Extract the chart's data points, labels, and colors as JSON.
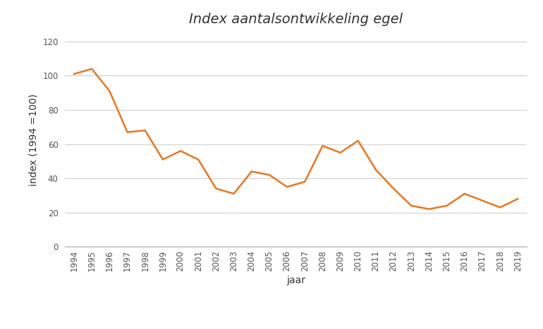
{
  "title": "Index aantalsontwikkeling egel",
  "xlabel": "jaar",
  "ylabel": "index (1994 =100)",
  "years": [
    1994,
    1995,
    1996,
    1997,
    1998,
    1999,
    2000,
    2001,
    2002,
    2003,
    2004,
    2005,
    2006,
    2007,
    2008,
    2009,
    2010,
    2011,
    2012,
    2013,
    2014,
    2015,
    2016,
    2017,
    2018,
    2019
  ],
  "values": [
    101,
    104,
    91,
    67,
    68,
    51,
    56,
    51,
    34,
    31,
    44,
    42,
    35,
    38,
    59,
    55,
    62,
    45,
    34,
    24,
    22,
    24,
    31,
    27,
    23,
    28
  ],
  "line_color": "#E87722",
  "line_width": 1.8,
  "ylim": [
    0,
    125
  ],
  "yticks": [
    0,
    20,
    40,
    60,
    80,
    100,
    120
  ],
  "background_color": "#ffffff",
  "grid_color": "#d0d0d0",
  "title_fontsize": 14,
  "label_fontsize": 10,
  "tick_fontsize": 8.5
}
